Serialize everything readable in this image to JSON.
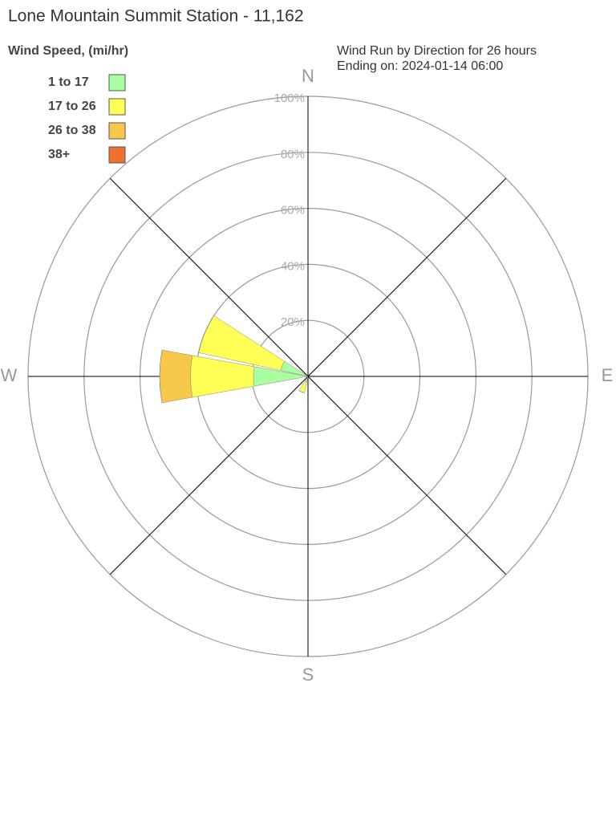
{
  "chart_data": {
    "type": "windrose",
    "title": "Lone Mountain Summit Station - 11,162",
    "legend_title": "Wind Speed, (mi/hr)",
    "subtitle": [
      "Wind Run by Direction for 26 hours",
      "Ending on: 2024-01-14 06:00"
    ],
    "categories": [
      "N",
      null,
      null,
      null,
      "E",
      null,
      null,
      null,
      "S",
      null,
      null,
      null,
      "W",
      null,
      null,
      null
    ],
    "series": [
      {
        "name": "1 to 17",
        "color": "#aaffa0",
        "values": [
          0,
          0,
          0,
          0,
          0,
          0,
          0,
          0,
          0,
          2,
          0,
          0,
          19.5,
          10,
          0,
          0
        ]
      },
      {
        "name": "17 to 26",
        "color": "#ffff55",
        "values": [
          0,
          0,
          0,
          0,
          0,
          0,
          0,
          0,
          0,
          4,
          0,
          0,
          22.5,
          30,
          0,
          0
        ]
      },
      {
        "name": "26 to 38",
        "color": "#f7c94b",
        "values": [
          0,
          0,
          0,
          0,
          0,
          0,
          0,
          0,
          0,
          0,
          0,
          0,
          11,
          0,
          0,
          0
        ]
      },
      {
        "name": "38+",
        "color": "#f07030",
        "values": [
          0,
          0,
          0,
          0,
          0,
          0,
          0,
          0,
          0,
          0,
          0,
          0,
          0,
          0,
          0,
          0
        ]
      }
    ],
    "ylim": [
      0,
      100
    ],
    "yticks": [
      {
        "value": 20,
        "label": "20%"
      },
      {
        "value": 40,
        "label": "40%"
      },
      {
        "value": 60,
        "label": "60%"
      },
      {
        "value": 80,
        "label": "80%"
      },
      {
        "value": 100,
        "label": "100%"
      }
    ]
  }
}
